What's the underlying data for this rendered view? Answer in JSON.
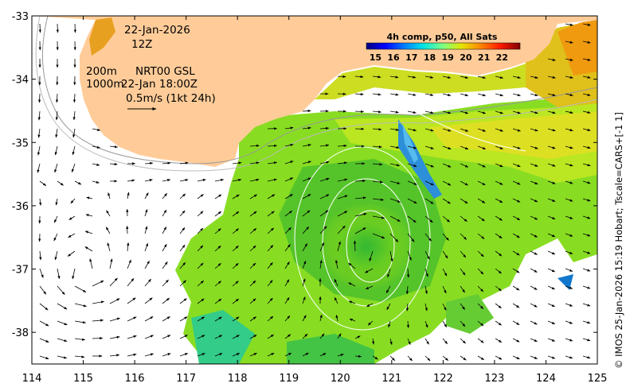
{
  "map": {
    "x_ticks": [
      "114",
      "115",
      "116",
      "117",
      "118",
      "119",
      "120",
      "121",
      "122",
      "123",
      "124",
      "125"
    ],
    "y_ticks": [
      "-33",
      "-34",
      "-35",
      "-36",
      "-37",
      "-38"
    ],
    "lon_range": [
      114,
      125
    ],
    "lat_range": [
      -38.5,
      -33
    ],
    "land_color": "#ffcc99",
    "no_data_color": "#ffffff"
  },
  "annotations": {
    "date": "22-Jan-2026",
    "time": "12Z",
    "contour_shallow": "200m",
    "contour_deep": "1000m",
    "product": "NRT00 GSL",
    "product_time": "22-Jan 18:00Z",
    "scale_text": "0.5m/s (1kt 24h)"
  },
  "colorbar": {
    "title": "4h comp, p50, All Sats",
    "labels": [
      "15",
      "16",
      "17",
      "18",
      "19",
      "20",
      "21",
      "22"
    ],
    "range": [
      14.5,
      23
    ]
  },
  "credit": "© IMOS 25-Jan-2026 15:19 Hobart; Tscale=CARS+[-1 1]",
  "icons": {
    "north_arrow": "none",
    "current_arrows": "arrow-icon"
  }
}
